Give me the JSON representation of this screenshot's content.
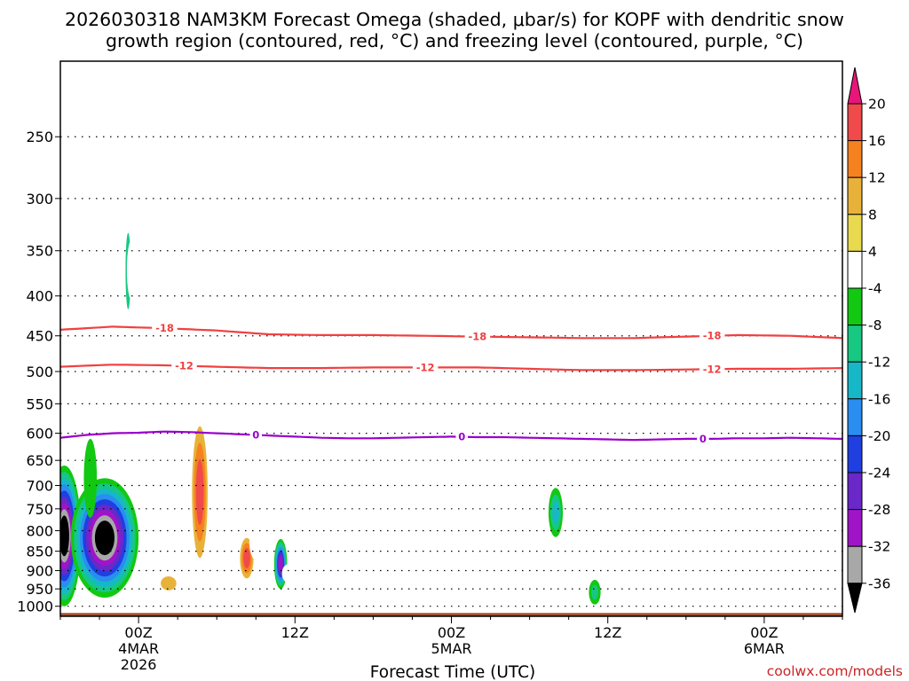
{
  "chart_data": {
    "type": "time-height",
    "title_line1": "2026030318 NAM3KM Forecast Omega (shaded, μbar/s) for KOPF with dendritic snow",
    "title_line2": "growth region (contoured, red, °C) and freezing level (contoured, purple, °C)",
    "xlabel": "Forecast Time (UTC)",
    "ylabel": "",
    "credit": "coolwx.com/models",
    "forecast_hours_range": [
      0,
      60
    ],
    "x_ticks": [
      {
        "hour": 6,
        "label": "00Z",
        "sub1": "4MAR",
        "sub2": "2026"
      },
      {
        "hour": 18,
        "label": "12Z",
        "sub1": "",
        "sub2": ""
      },
      {
        "hour": 30,
        "label": "00Z",
        "sub1": "5MAR",
        "sub2": ""
      },
      {
        "hour": 42,
        "label": "12Z",
        "sub1": "",
        "sub2": ""
      },
      {
        "hour": 54,
        "label": "00Z",
        "sub1": "6MAR",
        "sub2": ""
      }
    ],
    "pressure_range_hpa": [
      1030,
      200
    ],
    "y_ticks": [
      250,
      300,
      350,
      400,
      450,
      500,
      550,
      600,
      650,
      700,
      750,
      800,
      850,
      900,
      950,
      1000
    ],
    "surface_pressure_hpa": 1020,
    "contours": [
      {
        "name": "dgz-top-minus18",
        "label": "-18",
        "color": "#f04040",
        "hours": [
          0,
          4,
          8,
          12,
          16,
          20,
          24,
          28,
          32,
          36,
          40,
          44,
          48,
          52,
          56,
          60
        ],
        "pressure": [
          442,
          438,
          440,
          443,
          448,
          449,
          449,
          450,
          451,
          452,
          453,
          453,
          451,
          449,
          450,
          453
        ],
        "label_hours": [
          8,
          32,
          50
        ]
      },
      {
        "name": "dgz-bottom-minus12",
        "label": "-12",
        "color": "#f04040",
        "hours": [
          0,
          4,
          8,
          12,
          16,
          20,
          24,
          28,
          32,
          36,
          40,
          44,
          48,
          52,
          56,
          60
        ],
        "pressure": [
          493,
          490,
          491,
          493,
          495,
          495,
          494,
          494,
          494,
          496,
          498,
          498,
          497,
          496,
          496,
          495
        ],
        "label_hours": [
          9.5,
          28,
          50
        ]
      },
      {
        "name": "freezing-level",
        "label": "0",
        "color": "#9900cc",
        "hours": [
          0,
          2,
          4,
          6,
          8,
          10,
          12,
          14,
          16,
          18,
          20,
          22,
          24,
          26,
          28,
          30,
          32,
          34,
          36,
          38,
          40,
          42,
          44,
          46,
          48,
          50,
          52,
          54,
          56,
          58,
          60
        ],
        "pressure": [
          608,
          603,
          600,
          599,
          597,
          598,
          600,
          602,
          604,
          606,
          608,
          609,
          609,
          608,
          607,
          606,
          607,
          607,
          608,
          609,
          610,
          611,
          612,
          611,
          610,
          610,
          609,
          609,
          608,
          609,
          610
        ],
        "label_hours": [
          15,
          30.8,
          49.3
        ]
      }
    ],
    "shading_features": [
      {
        "hour": 2.3,
        "pressure": 262,
        "half_width_h": 0.35,
        "half_depth_hpa": 45,
        "bins": [
          4
        ]
      },
      {
        "hour": 5.2,
        "pressure": 374,
        "half_width_h": 0.2,
        "half_depth_hpa": 42,
        "bins": [
          -8
        ]
      },
      {
        "hour": 5.5,
        "pressure": 372,
        "half_width_h": 0.4,
        "half_depth_hpa": 34,
        "bins": [
          4
        ]
      },
      {
        "hour": 2.2,
        "pressure": 512,
        "half_width_h": 0.3,
        "half_depth_hpa": 20,
        "bins": [
          4
        ]
      },
      {
        "hour": 10.7,
        "pressure": 735,
        "half_width_h": 0.75,
        "half_depth_hpa": 175,
        "bins": [
          4,
          8,
          12,
          16
        ]
      },
      {
        "hour": 12.6,
        "pressure": 780,
        "half_width_h": 0.15,
        "half_depth_hpa": 25,
        "bins": [
          4
        ]
      },
      {
        "hour": 14.3,
        "pressure": 870,
        "half_width_h": 0.65,
        "half_depth_hpa": 65,
        "bins": [
          4,
          8,
          12,
          16
        ]
      },
      {
        "hour": 15.1,
        "pressure": 830,
        "half_width_h": 0.6,
        "half_depth_hpa": 45,
        "bins": [
          4
        ]
      },
      {
        "hour": 16.9,
        "pressure": 885,
        "half_width_h": 0.5,
        "half_depth_hpa": 65,
        "bins": [
          -4,
          -8,
          -12,
          -16,
          -20,
          -24,
          -28
        ]
      },
      {
        "hour": 17.5,
        "pressure": 908,
        "half_width_h": 0.5,
        "half_depth_hpa": 25,
        "bins": [
          4
        ]
      },
      {
        "hour": 8.3,
        "pressure": 935,
        "half_width_h": 1.0,
        "half_depth_hpa": 32,
        "bins": [
          4,
          8
        ]
      },
      {
        "hour": 12.8,
        "pressure": 612,
        "half_width_h": 0.12,
        "half_depth_hpa": 22,
        "bins": [
          4
        ]
      },
      {
        "hour": 37.8,
        "pressure": 640,
        "half_width_h": 0.3,
        "half_depth_hpa": 30,
        "bins": [
          4
        ]
      },
      {
        "hour": 38.0,
        "pressure": 760,
        "half_width_h": 0.55,
        "half_depth_hpa": 55,
        "bins": [
          -4,
          -8,
          -12
        ]
      },
      {
        "hour": 37.8,
        "pressure": 895,
        "half_width_h": 0.3,
        "half_depth_hpa": 20,
        "bins": [
          4
        ]
      },
      {
        "hour": 39.7,
        "pressure": 935,
        "half_width_h": 0.8,
        "half_depth_hpa": 18,
        "bins": [
          4
        ]
      },
      {
        "hour": 42.2,
        "pressure": 908,
        "half_width_h": 0.35,
        "half_depth_hpa": 28,
        "bins": [
          4
        ]
      },
      {
        "hour": 41.0,
        "pressure": 960,
        "half_width_h": 0.45,
        "half_depth_hpa": 35,
        "bins": [
          -4,
          -8
        ]
      },
      {
        "hour": 0.3,
        "pressure": 830,
        "half_width_h": 1.3,
        "half_depth_hpa": 170,
        "bins": [
          -4,
          -8,
          -12,
          -16,
          -20,
          -24,
          -28,
          -32,
          -36
        ]
      },
      {
        "hour": 3.4,
        "pressure": 830,
        "half_width_h": 2.6,
        "half_depth_hpa": 145,
        "bins": [
          -4,
          -8,
          -12,
          -16,
          -20,
          -24,
          -28,
          -32,
          -36
        ]
      },
      {
        "hour": 2.3,
        "pressure": 690,
        "half_width_h": 0.5,
        "half_depth_hpa": 80,
        "bins": [
          -4
        ]
      }
    ],
    "colorbar": {
      "label": "Omega (μbar/s)",
      "bins": [
        {
          "from": 20,
          "to": 24,
          "color": "#e8157a",
          "arrow": true
        },
        {
          "from": 16,
          "to": 20,
          "color": "#f04a4a"
        },
        {
          "from": 12,
          "to": 16,
          "color": "#f5821f"
        },
        {
          "from": 8,
          "to": 12,
          "color": "#e8b23a"
        },
        {
          "from": 4,
          "to": 8,
          "color": "#e8d94e"
        },
        {
          "from": -4,
          "to": 4,
          "color": "#ffffff"
        },
        {
          "from": -8,
          "to": -4,
          "color": "#12c812"
        },
        {
          "from": -12,
          "to": -8,
          "color": "#16c882"
        },
        {
          "from": -16,
          "to": -12,
          "color": "#16b8c8"
        },
        {
          "from": -20,
          "to": -16,
          "color": "#2a8df0"
        },
        {
          "from": -24,
          "to": -20,
          "color": "#1f3fe0"
        },
        {
          "from": -28,
          "to": -24,
          "color": "#6a28c8"
        },
        {
          "from": -32,
          "to": -28,
          "color": "#a014c8"
        },
        {
          "from": -36,
          "to": -32,
          "color": "#a8a8a8"
        },
        {
          "from": -40,
          "to": -36,
          "color": "#000000",
          "arrow": true
        }
      ],
      "tick_labels": [
        "20",
        "16",
        "12",
        "8",
        "4",
        "-4",
        "-8",
        "-12",
        "-16",
        "-20",
        "-24",
        "-28",
        "-32",
        "-36"
      ]
    }
  }
}
